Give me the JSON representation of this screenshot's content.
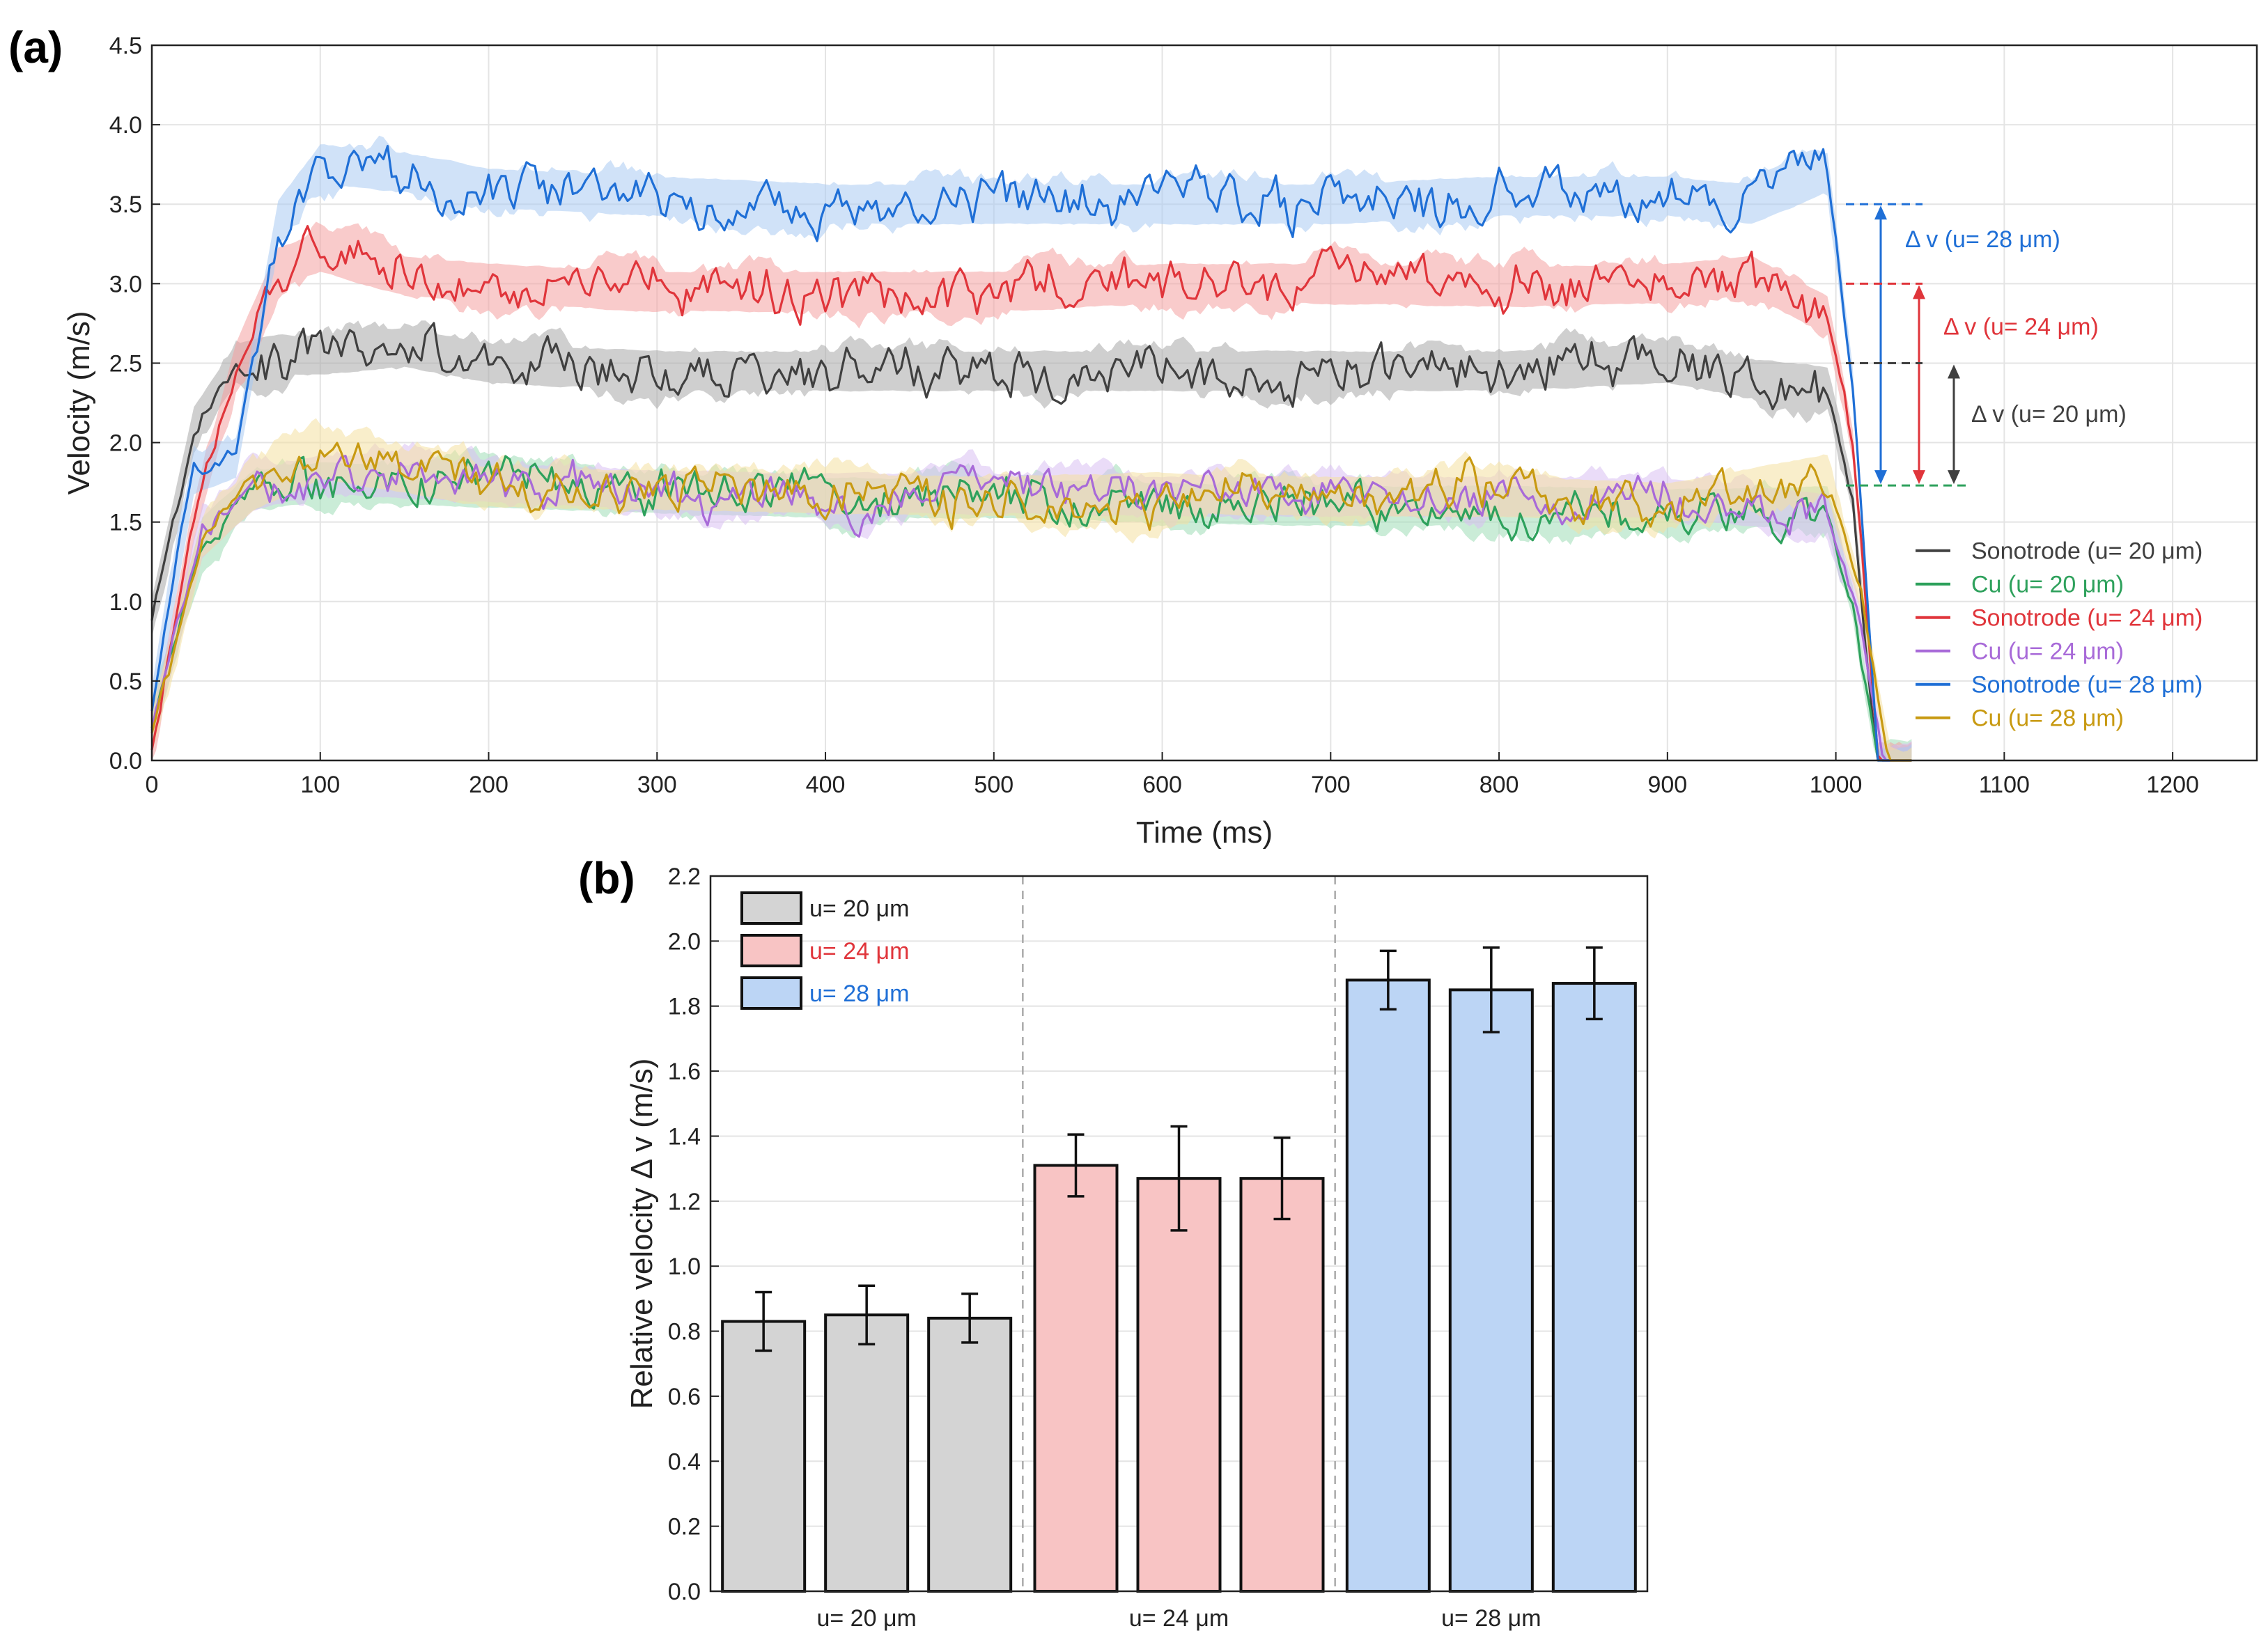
{
  "chart_data": [
    {
      "panel": "(a)",
      "type": "line",
      "xlabel": "Time (ms)",
      "ylabel": "Velocity (m/s)",
      "xlim": [
        0,
        1250
      ],
      "ylim": [
        0,
        4.5
      ],
      "xticks": [
        0,
        100,
        200,
        300,
        400,
        500,
        600,
        700,
        800,
        900,
        1000,
        1100,
        1200
      ],
      "yticks": [
        "0.0",
        "0.5",
        "1.0",
        "1.5",
        "2.0",
        "2.5",
        "3.0",
        "3.5",
        "4.0",
        "4.5"
      ],
      "grid": true,
      "legend_position": "bottom-right",
      "series": [
        {
          "name": "Sonotrode (u= 20 μm)",
          "color": "#404040",
          "band": "#a8a8a8",
          "x": [
            0,
            25,
            50,
            75,
            100,
            150,
            200,
            300,
            400,
            500,
            600,
            700,
            800,
            900,
            950,
            995,
            1010,
            1025
          ],
          "y": [
            0.9,
            2.1,
            2.5,
            2.55,
            2.55,
            2.6,
            2.5,
            2.45,
            2.45,
            2.45,
            2.45,
            2.45,
            2.45,
            2.5,
            2.4,
            2.35,
            1.7,
            0.0
          ]
        },
        {
          "name": "Cu (u= 20 μm)",
          "color": "#2ea15c",
          "band": "#9fdcb6",
          "x": [
            0,
            30,
            60,
            100,
            200,
            300,
            400,
            500,
            600,
            700,
            800,
            900,
            995,
            1010,
            1025
          ],
          "y": [
            0.2,
            1.4,
            1.7,
            1.75,
            1.72,
            1.68,
            1.65,
            1.65,
            1.62,
            1.6,
            1.6,
            1.58,
            1.6,
            1.0,
            0.0
          ]
        },
        {
          "name": "Sonotrode (u= 24 μm)",
          "color": "#e0353b",
          "band": "#f4a0a0",
          "x": [
            0,
            25,
            50,
            75,
            100,
            150,
            200,
            300,
            400,
            500,
            600,
            700,
            800,
            900,
            950,
            995,
            1010,
            1025
          ],
          "y": [
            0.1,
            1.5,
            2.5,
            3.1,
            3.2,
            3.05,
            3.0,
            2.95,
            2.95,
            2.95,
            3.0,
            3.0,
            2.98,
            3.0,
            3.05,
            2.8,
            2.0,
            0.0
          ]
        },
        {
          "name": "Cu (u= 24 μm)",
          "color": "#a86ad8",
          "band": "#d8bff2",
          "x": [
            0,
            30,
            60,
            100,
            200,
            300,
            400,
            500,
            600,
            700,
            800,
            900,
            995,
            1012,
            1028
          ],
          "y": [
            0.2,
            1.4,
            1.7,
            1.8,
            1.75,
            1.7,
            1.68,
            1.68,
            1.66,
            1.66,
            1.66,
            1.65,
            1.55,
            1.0,
            0.0
          ]
        },
        {
          "name": "Sonotrode (u= 28 μm)",
          "color": "#1f6fd6",
          "band": "#a9caf3",
          "x": [
            0,
            25,
            50,
            75,
            100,
            150,
            200,
            300,
            400,
            500,
            600,
            700,
            800,
            900,
            950,
            995,
            1010,
            1025
          ],
          "y": [
            0.3,
            1.8,
            1.9,
            3.4,
            3.75,
            3.7,
            3.6,
            3.55,
            3.5,
            3.5,
            3.5,
            3.5,
            3.55,
            3.55,
            3.5,
            3.7,
            2.4,
            0.0
          ]
        },
        {
          "name": "Cu (u= 28 μm)",
          "color": "#c89a12",
          "band": "#f4e0a0",
          "x": [
            0,
            30,
            60,
            100,
            200,
            300,
            400,
            500,
            600,
            700,
            800,
            900,
            995,
            1015,
            1032
          ],
          "y": [
            0.2,
            1.4,
            1.7,
            1.9,
            1.72,
            1.7,
            1.68,
            1.66,
            1.68,
            1.66,
            1.66,
            1.62,
            1.8,
            1.0,
            0.0
          ]
        }
      ],
      "annotations": [
        {
          "label": "Δ v (u= 28 μm)",
          "from": 1.73,
          "to": 3.5,
          "color": "#1f6fd6"
        },
        {
          "label": "Δ v (u= 24 μm)",
          "from": 1.73,
          "to": 3.0,
          "color": "#e0353b"
        },
        {
          "label": "Δ v (u= 20 μm)",
          "from": 1.73,
          "to": 2.5,
          "color": "#404040"
        }
      ]
    },
    {
      "panel": "(b)",
      "type": "bar",
      "ylabel": "Relative velocity Δ v (m/s)",
      "ylim": [
        0,
        2.2
      ],
      "yticks": [
        "0.0",
        "0.2",
        "0.4",
        "0.6",
        "0.8",
        "1.0",
        "1.2",
        "1.4",
        "1.6",
        "1.8",
        "2.0",
        "2.2"
      ],
      "categories": [
        "u= 20 μm",
        "u= 24 μm",
        "u= 28 μm"
      ],
      "grid": true,
      "legend_position": "top-left",
      "series": [
        {
          "name": "u= 20 μm",
          "color": "#d4d4d4",
          "text_color": "#222222",
          "values": [
            0.83,
            0.85,
            0.84
          ],
          "errors": [
            0.09,
            0.09,
            0.075
          ]
        },
        {
          "name": "u= 24 μm",
          "color": "#f8c4c4",
          "text_color": "#e0353b",
          "values": [
            1.31,
            1.27,
            1.27
          ],
          "errors": [
            0.095,
            0.16,
            0.125
          ]
        },
        {
          "name": "u= 28 μm",
          "color": "#bcd5f5",
          "text_color": "#1f6fd6",
          "values": [
            1.88,
            1.85,
            1.87
          ],
          "errors": [
            0.09,
            0.13,
            0.11
          ]
        }
      ]
    }
  ]
}
